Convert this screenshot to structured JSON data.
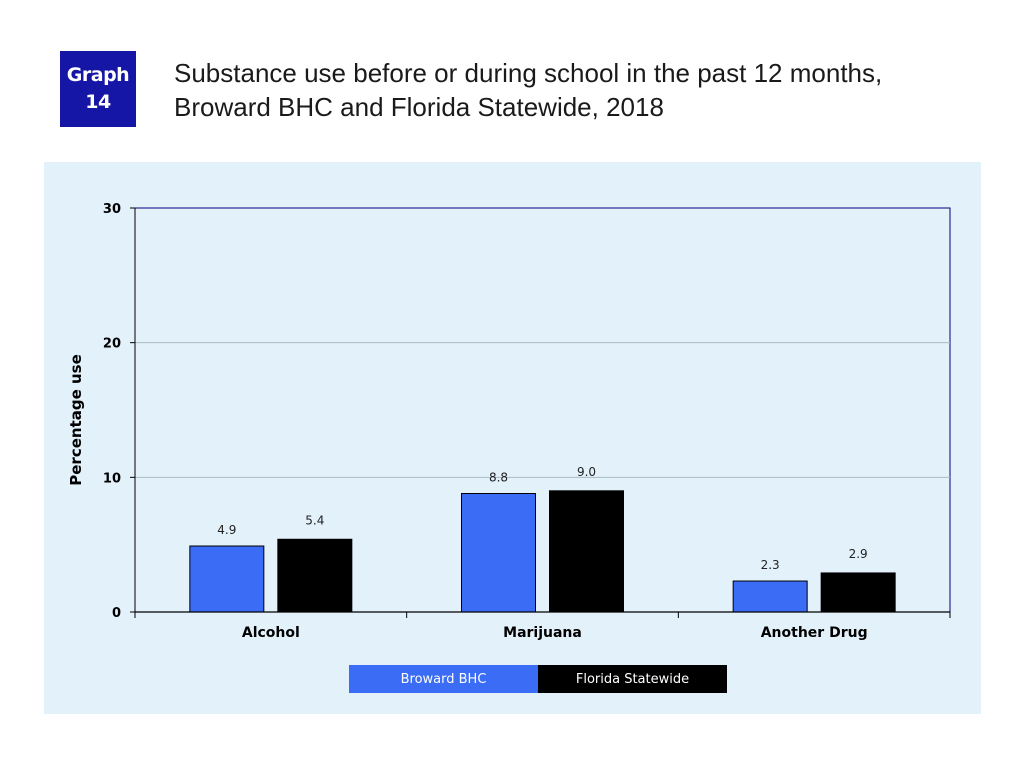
{
  "header": {
    "badge_line1": "Graph",
    "badge_line2": "14",
    "title_line1": "Substance use before or during school in the past 12 months,",
    "title_line2": "Broward BHC and Florida Statewide, 2018"
  },
  "chart_data": {
    "type": "bar",
    "categories": [
      "Alcohol",
      "Marijuana",
      "Another Drug"
    ],
    "series": [
      {
        "name": "Broward BHC",
        "values": [
          4.9,
          8.8,
          2.3
        ],
        "labels": [
          "4.9",
          "8.8",
          "2.3"
        ],
        "color": "#3a6cf5"
      },
      {
        "name": "Florida Statewide",
        "values": [
          5.4,
          9.0,
          2.9
        ],
        "labels": [
          "5.4",
          "9.0",
          "2.9"
        ],
        "color": "#000000"
      }
    ],
    "ylabel": "Percentage use",
    "ylim": [
      0,
      30
    ],
    "yticks": [
      0,
      10,
      20,
      30
    ],
    "ytick_labels": [
      "0",
      "10",
      "20",
      "30"
    ],
    "grid": true,
    "legend_position": "bottom",
    "background": "#e3f1fb"
  },
  "colors": {
    "badge": "#1515a6",
    "panel": "#e3f1fb"
  }
}
